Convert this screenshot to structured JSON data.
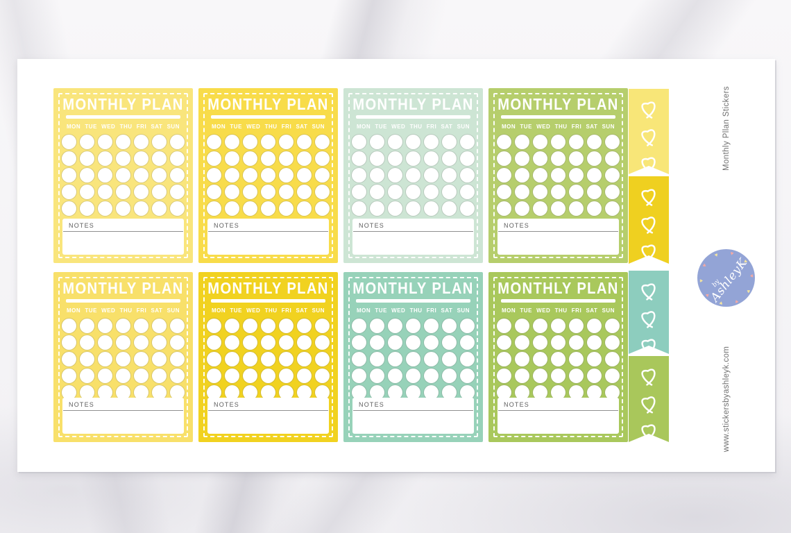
{
  "product": {
    "side_label_top": "Monthly Pllan Stickers",
    "side_label_bottom": "www.stickersbyashleyk.com"
  },
  "logo": {
    "prefix": "by",
    "name": "AshleyK"
  },
  "sticker_sheet": {
    "card_title": "MONTHLY PLAN",
    "day_headers": [
      "MON",
      "TUE",
      "WED",
      "THU",
      "FRI",
      "SAT",
      "SUN"
    ],
    "notes_label": "NOTES",
    "grid": {
      "rows": 2,
      "cols": 4,
      "circle_rows": 5,
      "circle_cols": 7
    },
    "cards": [
      {
        "name": "monthly-plan-card-light-yellow",
        "color": "#F9E57C"
      },
      {
        "name": "monthly-plan-card-yellow",
        "color": "#F8DC4A"
      },
      {
        "name": "monthly-plan-card-mint",
        "color": "#CDE5D4"
      },
      {
        "name": "monthly-plan-card-lime",
        "color": "#B6CE6C"
      },
      {
        "name": "monthly-plan-card-warm-yellow",
        "color": "#F8E06A"
      },
      {
        "name": "monthly-plan-card-gold",
        "color": "#F1D220"
      },
      {
        "name": "monthly-plan-card-teal",
        "color": "#97D2B9"
      },
      {
        "name": "monthly-plan-card-green",
        "color": "#A9C85C"
      }
    ],
    "flags": [
      {
        "name": "heart-flag-light-yellow",
        "color": "#F8E678",
        "hearts": 3
      },
      {
        "name": "heart-flag-gold",
        "color": "#EFD020",
        "hearts": 3
      },
      {
        "name": "heart-flag-teal",
        "color": "#8DCDBE",
        "hearts": 3
      },
      {
        "name": "heart-flag-green",
        "color": "#A9C75B",
        "hearts": 3
      }
    ]
  },
  "colors": {
    "sheet_background": "#FFFFFF",
    "marble_background": "#F6F5F7",
    "card_text": "#FFFFFF",
    "notes_text": "#5D5D5D",
    "side_text": "#6F6F6F",
    "logo_badge": "#93A4D6",
    "logo_heart_pink": "#F4A9A4",
    "logo_heart_yellow": "#F3E4A0"
  }
}
